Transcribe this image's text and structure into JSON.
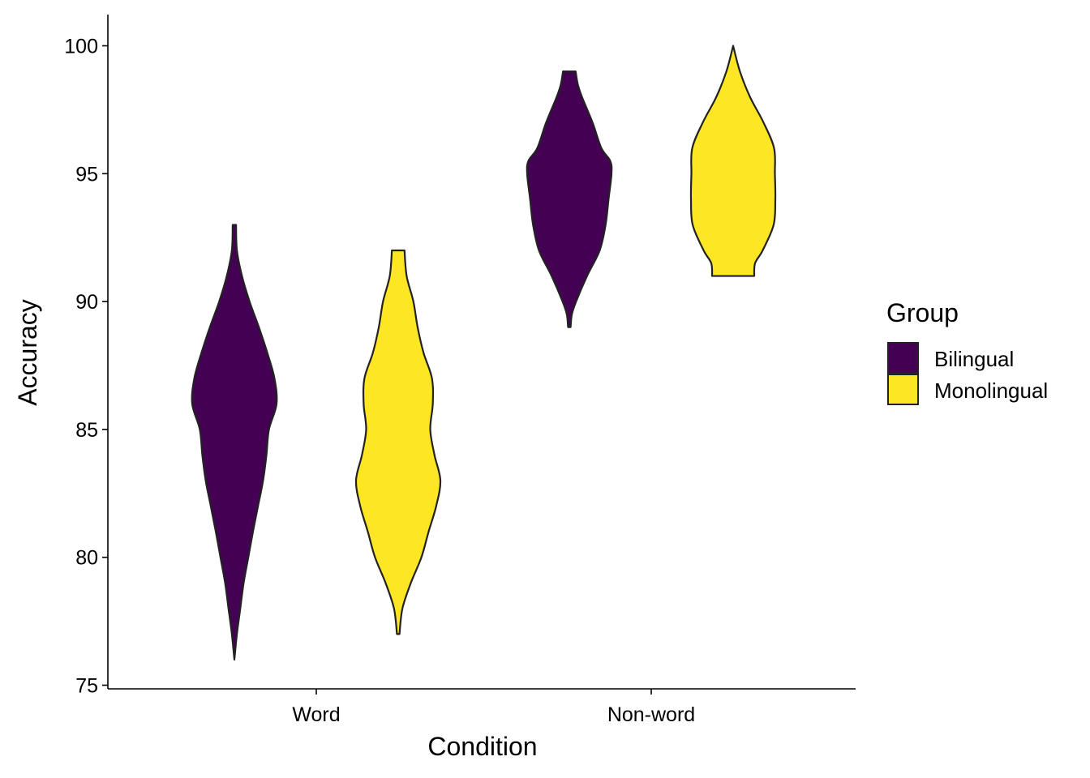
{
  "chart_data": {
    "type": "violin",
    "xlabel": "Condition",
    "ylabel": "Accuracy",
    "categories": [
      "Word",
      "Non-word"
    ],
    "ylim": [
      75,
      100
    ],
    "yticks": [
      75,
      80,
      85,
      90,
      95,
      100
    ],
    "grid": false,
    "legend": {
      "title": "Group",
      "position": "right",
      "entries": [
        {
          "name": "Bilingual",
          "color": "#440154"
        },
        {
          "name": "Monolingual",
          "color": "#FDE725"
        }
      ]
    },
    "series": [
      {
        "name": "Bilingual",
        "color": "#440154",
        "violins": [
          {
            "category": "Word",
            "min": 76,
            "max": 93,
            "density_profile": [
              [
                76,
                0.0
              ],
              [
                77,
                0.06
              ],
              [
                78,
                0.14
              ],
              [
                79,
                0.22
              ],
              [
                80,
                0.33
              ],
              [
                81,
                0.44
              ],
              [
                82,
                0.56
              ],
              [
                83,
                0.68
              ],
              [
                84,
                0.76
              ],
              [
                85,
                0.82
              ],
              [
                86,
                1.0
              ],
              [
                87,
                0.95
              ],
              [
                88,
                0.78
              ],
              [
                89,
                0.58
              ],
              [
                90,
                0.36
              ],
              [
                91,
                0.18
              ],
              [
                92,
                0.06
              ],
              [
                93,
                0.04
              ]
            ]
          },
          {
            "category": "Non-word",
            "min": 89,
            "max": 99,
            "density_profile": [
              [
                89,
                0.03
              ],
              [
                89.5,
                0.06
              ],
              [
                90,
                0.16
              ],
              [
                91,
                0.42
              ],
              [
                92,
                0.72
              ],
              [
                93,
                0.86
              ],
              [
                94,
                0.93
              ],
              [
                95,
                1.0
              ],
              [
                95.5,
                0.97
              ],
              [
                96,
                0.76
              ],
              [
                97,
                0.55
              ],
              [
                98,
                0.3
              ],
              [
                98.5,
                0.2
              ],
              [
                99,
                0.15
              ]
            ]
          }
        ]
      },
      {
        "name": "Monolingual",
        "color": "#FDE725",
        "violins": [
          {
            "category": "Word",
            "min": 77,
            "max": 92,
            "density_profile": [
              [
                77,
                0.03
              ],
              [
                78,
                0.1
              ],
              [
                79,
                0.3
              ],
              [
                80,
                0.55
              ],
              [
                81,
                0.72
              ],
              [
                82,
                0.9
              ],
              [
                83,
                1.0
              ],
              [
                84,
                0.86
              ],
              [
                85,
                0.76
              ],
              [
                86,
                0.82
              ],
              [
                87,
                0.8
              ],
              [
                88,
                0.6
              ],
              [
                89,
                0.46
              ],
              [
                90,
                0.36
              ],
              [
                91,
                0.2
              ],
              [
                92,
                0.15
              ]
            ]
          },
          {
            "category": "Non-word",
            "min": 91,
            "max": 100,
            "density_profile": [
              [
                91,
                0.5
              ],
              [
                91.5,
                0.52
              ],
              [
                92,
                0.7
              ],
              [
                93,
                0.96
              ],
              [
                94,
                1.0
              ],
              [
                95,
                0.99
              ],
              [
                96,
                0.97
              ],
              [
                97,
                0.72
              ],
              [
                98,
                0.4
              ],
              [
                99,
                0.16
              ],
              [
                100,
                0.0
              ]
            ]
          }
        ]
      }
    ]
  }
}
